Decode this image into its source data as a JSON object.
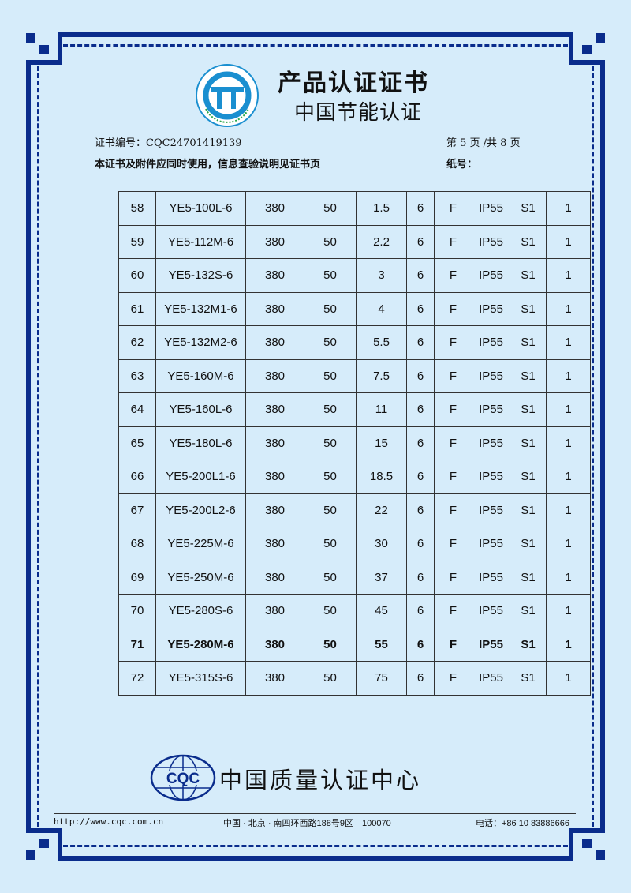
{
  "header": {
    "title": "产品认证证书",
    "subtitle": "中国节能认证",
    "logo_text": "中国节能认证 Energy Conservation Certification",
    "cert_no_label": "证书编号：",
    "cert_no": "CQC24701419139",
    "page_info": "第 5 页 /共 8 页",
    "notice": "本证书及附件应同时使用，信息查验说明见证书页",
    "paper_no_label": "纸号："
  },
  "table": {
    "rows": [
      [
        "58",
        "YE5-100L-6",
        "380",
        "50",
        "1.5",
        "6",
        "F",
        "IP55",
        "S1",
        "1"
      ],
      [
        "59",
        "YE5-112M-6",
        "380",
        "50",
        "2.2",
        "6",
        "F",
        "IP55",
        "S1",
        "1"
      ],
      [
        "60",
        "YE5-132S-6",
        "380",
        "50",
        "3",
        "6",
        "F",
        "IP55",
        "S1",
        "1"
      ],
      [
        "61",
        "YE5-132M1-6",
        "380",
        "50",
        "4",
        "6",
        "F",
        "IP55",
        "S1",
        "1"
      ],
      [
        "62",
        "YE5-132M2-6",
        "380",
        "50",
        "5.5",
        "6",
        "F",
        "IP55",
        "S1",
        "1"
      ],
      [
        "63",
        "YE5-160M-6",
        "380",
        "50",
        "7.5",
        "6",
        "F",
        "IP55",
        "S1",
        "1"
      ],
      [
        "64",
        "YE5-160L-6",
        "380",
        "50",
        "11",
        "6",
        "F",
        "IP55",
        "S1",
        "1"
      ],
      [
        "65",
        "YE5-180L-6",
        "380",
        "50",
        "15",
        "6",
        "F",
        "IP55",
        "S1",
        "1"
      ],
      [
        "66",
        "YE5-200L1-6",
        "380",
        "50",
        "18.5",
        "6",
        "F",
        "IP55",
        "S1",
        "1"
      ],
      [
        "67",
        "YE5-200L2-6",
        "380",
        "50",
        "22",
        "6",
        "F",
        "IP55",
        "S1",
        "1"
      ],
      [
        "68",
        "YE5-225M-6",
        "380",
        "50",
        "30",
        "6",
        "F",
        "IP55",
        "S1",
        "1"
      ],
      [
        "69",
        "YE5-250M-6",
        "380",
        "50",
        "37",
        "6",
        "F",
        "IP55",
        "S1",
        "1"
      ],
      [
        "70",
        "YE5-280S-6",
        "380",
        "50",
        "45",
        "6",
        "F",
        "IP55",
        "S1",
        "1"
      ],
      [
        "71",
        "YE5-280M-6",
        "380",
        "50",
        "55",
        "6",
        "F",
        "IP55",
        "S1",
        "1"
      ],
      [
        "72",
        "YE5-315S-6",
        "380",
        "50",
        "75",
        "6",
        "F",
        "IP55",
        "S1",
        "1"
      ]
    ],
    "bold_row": "71"
  },
  "footer": {
    "org_logo": "CQC",
    "org_name": "中国质量认证中心",
    "url": "http://www.cqc.com.cn",
    "address": "中国 · 北京 · 南四环西路188号9区　100070",
    "phone": "电话：+86 10 83886666"
  },
  "colors": {
    "border": "#0a2c8c",
    "background": "#d6ecfa",
    "logo_blue": "#1a8fd0",
    "logo_green": "#2aa84a"
  }
}
